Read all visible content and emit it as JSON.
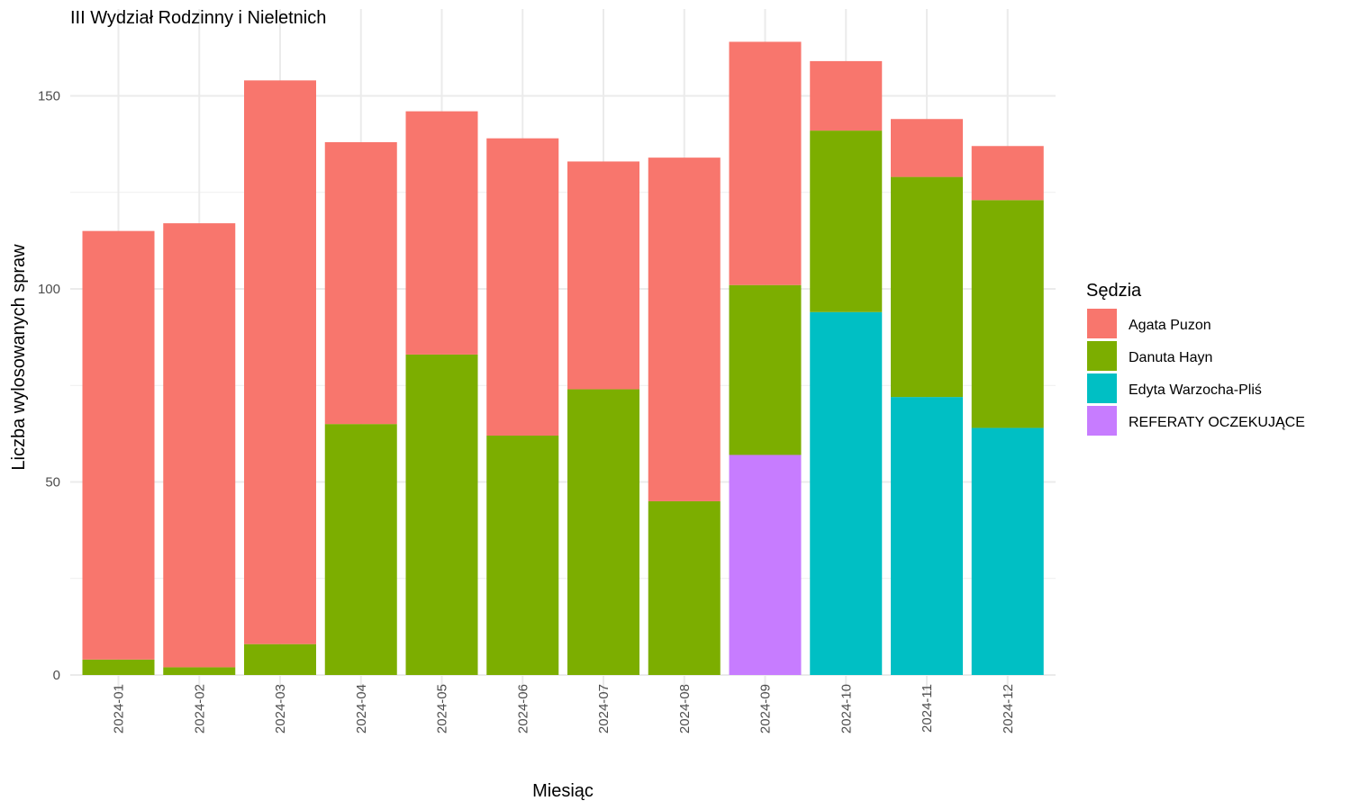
{
  "chart_data": {
    "type": "bar",
    "stacked": true,
    "title": "III Wydział Rodzinny i Nieletnich",
    "xlabel": "Miesiąc",
    "ylabel": "Liczba wylosowanych spraw",
    "ylim": [
      0,
      168
    ],
    "yticks": [
      0,
      50,
      100,
      150
    ],
    "grid": true,
    "legend_title": "Sędzia",
    "legend_position": "right",
    "categories": [
      "2024-01",
      "2024-02",
      "2024-03",
      "2024-04",
      "2024-05",
      "2024-06",
      "2024-07",
      "2024-08",
      "2024-09",
      "2024-10",
      "2024-11",
      "2024-12"
    ],
    "series": [
      {
        "name": "Edyta Warzocha-Pliś",
        "color": "#00BFC4",
        "values": [
          0,
          0,
          0,
          0,
          0,
          0,
          0,
          0,
          0,
          94,
          72,
          64
        ]
      },
      {
        "name": "REFERATY OCZEKUJĄCE",
        "color": "#C77CFF",
        "values": [
          0,
          0,
          0,
          0,
          0,
          0,
          0,
          0,
          57,
          0,
          0,
          0
        ]
      },
      {
        "name": "Danuta Hayn",
        "color": "#7CAE00",
        "values": [
          4,
          2,
          8,
          65,
          83,
          62,
          74,
          45,
          44,
          47,
          57,
          59
        ]
      },
      {
        "name": "Agata Puzon",
        "color": "#F8766D",
        "values": [
          111,
          115,
          146,
          73,
          63,
          77,
          59,
          89,
          63,
          18,
          15,
          14
        ]
      }
    ],
    "legend_order": [
      "Agata Puzon",
      "Danuta Hayn",
      "Edyta Warzocha-Pliś",
      "REFERATY OCZEKUJĄCE"
    ]
  }
}
